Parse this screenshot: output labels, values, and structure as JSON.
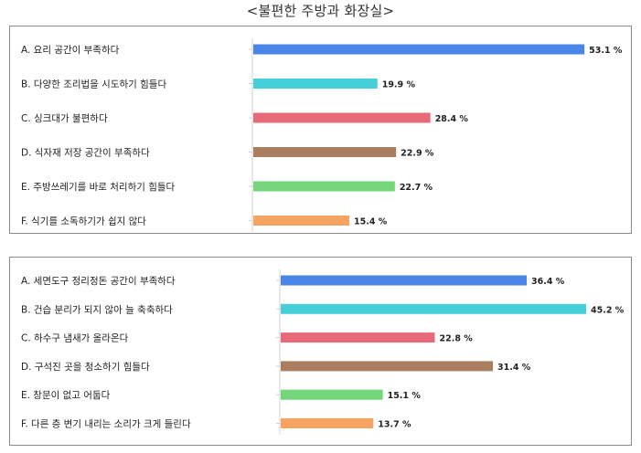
{
  "page_title": "<불편한 주방과 화장실>",
  "chart_data": [
    {
      "type": "bar",
      "orientation": "horizontal",
      "categories": [
        "A. 요리 공간이 부족하다",
        "B. 다양한 조리법을 시도하기 힘들다",
        "C. 싱크대가 불편하다",
        "D. 식자재 저장 공간이 부족하다",
        "E. 주방쓰레기를 바로 처리하기 힘들다",
        "F. 식기를 소독하기가 쉽지 않다"
      ],
      "values": [
        53.1,
        19.9,
        28.4,
        22.9,
        22.7,
        15.4
      ],
      "value_labels": [
        "53.1 %",
        "19.9 %",
        "28.4 %",
        "22.9 %",
        "22.7 %",
        "15.4 %"
      ],
      "colors": [
        "#4a86e8",
        "#45cfd9",
        "#e8697a",
        "#a97e5f",
        "#74d57a",
        "#f7a463"
      ],
      "xlim": [
        0,
        55
      ],
      "grid": false
    },
    {
      "type": "bar",
      "orientation": "horizontal",
      "categories": [
        "A. 세면도구 정리정돈 공간이 부족하다",
        "B. 건습 분리가 되지 않아 늘 축축하다",
        "C. 하수구 냄새가 올라온다",
        "D. 구석진 곳을 청소하기 힘들다",
        "E. 창문이 없고 어둡다",
        "F. 다른 층 변기 내리는 소리가 크게 들린다"
      ],
      "values": [
        36.4,
        45.2,
        22.8,
        31.4,
        15.1,
        13.7
      ],
      "value_labels": [
        "36.4 %",
        "45.2 %",
        "22.8 %",
        "31.4 %",
        "15.1 %",
        "13.7 %"
      ],
      "colors": [
        "#4a86e8",
        "#45cfd9",
        "#e8697a",
        "#a97e5f",
        "#74d57a",
        "#f7a463"
      ],
      "xlim": [
        0,
        55
      ],
      "grid": false
    }
  ]
}
